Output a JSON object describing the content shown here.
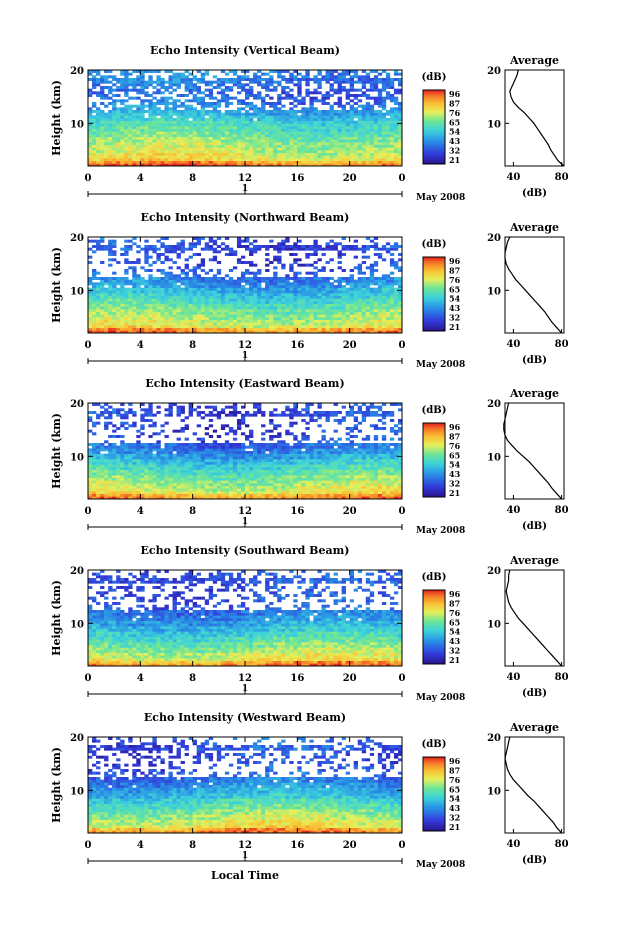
{
  "figure": {
    "ylabel": "Height (km)",
    "xlabel": "Local Time",
    "day_label": "1",
    "month_label": "May 2008",
    "colorbar_unit": "(dB)",
    "colorbar_ticks": [
      "96",
      "87",
      "76",
      "65",
      "54",
      "43",
      "32",
      "21"
    ],
    "profile_title": "Average",
    "profile_xlabel": "(dB)"
  },
  "chart_data": [
    {
      "type": "heatmap",
      "title": "Echo Intensity (Vertical Beam)",
      "xlabel": "Local Time",
      "ylabel": "Height (km)",
      "xticks": [
        "0",
        "4",
        "8",
        "12",
        "16",
        "20",
        "0"
      ],
      "xlim": [
        0,
        24
      ],
      "yticks": [
        "10",
        "20"
      ],
      "ylim": [
        2,
        20
      ],
      "colorbar": {
        "label": "(dB)",
        "ticks": [
          96,
          87,
          76,
          65,
          54,
          43,
          32,
          21
        ],
        "range": [
          21,
          96
        ]
      },
      "profile": {
        "title": "Average",
        "xlabel": "(dB)",
        "xticks": [
          "40",
          "80"
        ],
        "yticks": [
          "10",
          "20"
        ],
        "height_km": [
          2,
          3,
          4,
          5,
          6,
          7,
          8,
          9,
          10,
          11,
          12,
          13,
          14,
          15,
          16,
          17,
          18,
          19,
          20
        ],
        "db": [
          82,
          77,
          74,
          71,
          69,
          66,
          63,
          60,
          57,
          53,
          49,
          44,
          40,
          38,
          37,
          39,
          41,
          43,
          44
        ]
      }
    },
    {
      "type": "heatmap",
      "title": "Echo Intensity (Northward Beam)",
      "xlabel": "Local Time",
      "ylabel": "Height (km)",
      "xticks": [
        "0",
        "4",
        "8",
        "12",
        "16",
        "20",
        "0"
      ],
      "xlim": [
        0,
        24
      ],
      "yticks": [
        "10",
        "20"
      ],
      "ylim": [
        2,
        20
      ],
      "colorbar": {
        "label": "(dB)",
        "ticks": [
          96,
          87,
          76,
          65,
          54,
          43,
          32,
          21
        ],
        "range": [
          21,
          96
        ]
      },
      "profile": {
        "title": "Average",
        "xlabel": "(dB)",
        "xticks": [
          "40",
          "80"
        ],
        "yticks": [
          "10",
          "20"
        ],
        "height_km": [
          2,
          3,
          4,
          5,
          6,
          7,
          8,
          9,
          10,
          11,
          12,
          13,
          14,
          15,
          16,
          17,
          18,
          19,
          20
        ],
        "db": [
          80,
          76,
          72,
          69,
          66,
          62,
          58,
          54,
          50,
          46,
          42,
          39,
          36,
          34,
          33,
          33,
          34,
          35,
          37
        ]
      }
    },
    {
      "type": "heatmap",
      "title": "Echo Intensity (Eastward Beam)",
      "xlabel": "Local Time",
      "ylabel": "Height (km)",
      "xticks": [
        "0",
        "4",
        "8",
        "12",
        "16",
        "20",
        "0"
      ],
      "xlim": [
        0,
        24
      ],
      "yticks": [
        "10",
        "20"
      ],
      "ylim": [
        2,
        20
      ],
      "colorbar": {
        "label": "(dB)",
        "ticks": [
          96,
          87,
          76,
          65,
          54,
          43,
          32,
          21
        ],
        "range": [
          21,
          96
        ]
      },
      "profile": {
        "title": "Average",
        "xlabel": "(dB)",
        "xticks": [
          "40",
          "80"
        ],
        "yticks": [
          "10",
          "20"
        ],
        "height_km": [
          2,
          3,
          4,
          5,
          6,
          7,
          8,
          9,
          10,
          11,
          12,
          13,
          14,
          15,
          16,
          17,
          18,
          19,
          20
        ],
        "db": [
          80,
          76,
          72,
          69,
          65,
          61,
          57,
          53,
          48,
          43,
          39,
          35,
          33,
          32,
          32,
          33,
          34,
          35,
          36
        ]
      }
    },
    {
      "type": "heatmap",
      "title": "Echo Intensity (Southward Beam)",
      "xlabel": "Local Time",
      "ylabel": "Height (km)",
      "xticks": [
        "0",
        "4",
        "8",
        "12",
        "16",
        "20",
        "0"
      ],
      "xlim": [
        0,
        24
      ],
      "yticks": [
        "10",
        "20"
      ],
      "ylim": [
        2,
        20
      ],
      "colorbar": {
        "label": "(dB)",
        "ticks": [
          96,
          87,
          76,
          65,
          54,
          43,
          32,
          21
        ],
        "range": [
          21,
          96
        ]
      },
      "profile": {
        "title": "Average",
        "xlabel": "(dB)",
        "xticks": [
          "40",
          "80"
        ],
        "yticks": [
          "10",
          "20"
        ],
        "height_km": [
          2,
          3,
          4,
          5,
          6,
          7,
          8,
          9,
          10,
          11,
          12,
          13,
          14,
          15,
          16,
          17,
          18,
          19,
          20
        ],
        "db": [
          80,
          76,
          72,
          68,
          64,
          60,
          56,
          52,
          48,
          44,
          41,
          38,
          36,
          35,
          34,
          35,
          36,
          36,
          37
        ]
      }
    },
    {
      "type": "heatmap",
      "title": "Echo Intensity (Westward Beam)",
      "xlabel": "Local Time",
      "ylabel": "Height (km)",
      "xticks": [
        "0",
        "4",
        "8",
        "12",
        "16",
        "20",
        "0"
      ],
      "xlim": [
        0,
        24
      ],
      "yticks": [
        "10",
        "20"
      ],
      "ylim": [
        2,
        20
      ],
      "colorbar": {
        "label": "(dB)",
        "ticks": [
          96,
          87,
          76,
          65,
          54,
          43,
          32,
          21
        ],
        "range": [
          21,
          96
        ]
      },
      "profile": {
        "title": "Average",
        "xlabel": "(dB)",
        "xticks": [
          "40",
          "80"
        ],
        "yticks": [
          "10",
          "20"
        ],
        "height_km": [
          2,
          3,
          4,
          5,
          6,
          7,
          8,
          9,
          10,
          11,
          12,
          13,
          14,
          15,
          16,
          17,
          18,
          19,
          20
        ],
        "db": [
          80,
          76,
          73,
          69,
          65,
          61,
          57,
          52,
          48,
          44,
          40,
          37,
          35,
          34,
          33,
          34,
          35,
          36,
          37
        ]
      }
    }
  ]
}
